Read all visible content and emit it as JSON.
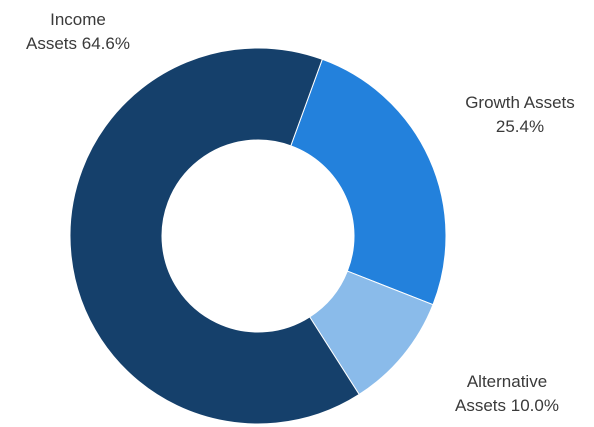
{
  "chart_data": {
    "type": "pie",
    "variant": "donut",
    "title": "",
    "slices": [
      {
        "line1": "Income",
        "line2": "Assets 64.6%",
        "value": 64.6,
        "color": "#15406b"
      },
      {
        "line1": "Growth Assets",
        "line2": "25.4%",
        "value": 25.4,
        "color": "#2381dc"
      },
      {
        "line1": "Alternative",
        "line2": "Assets 10.0%",
        "value": 10.0,
        "color": "#8abbea"
      }
    ],
    "legend": "none",
    "start_angle": "slice boundary near top-right, clockwise"
  }
}
